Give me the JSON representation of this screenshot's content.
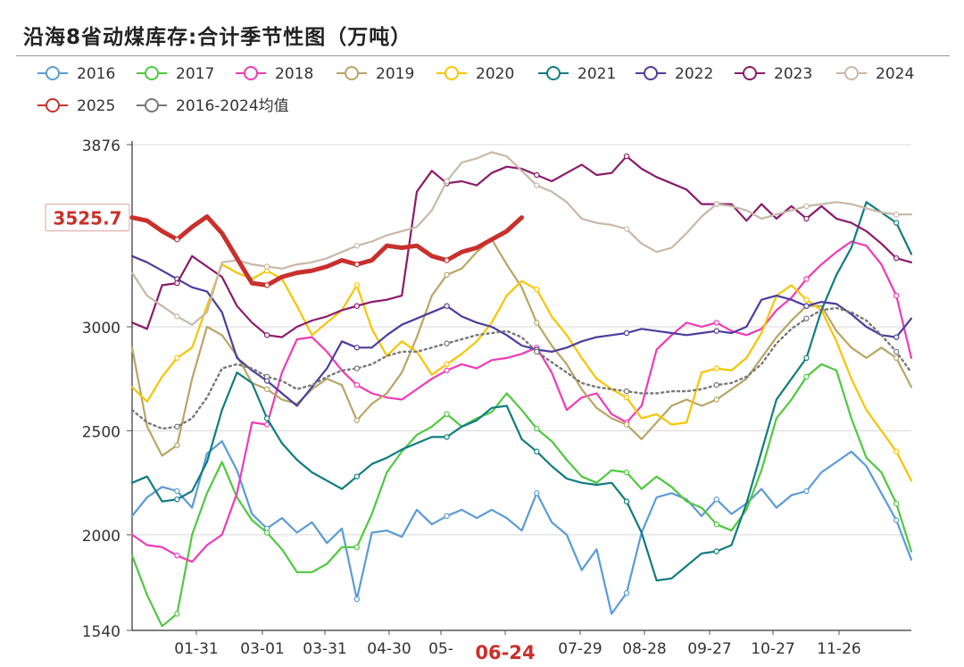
{
  "chart_data": {
    "type": "line",
    "title": "沿海8省动煤库存:合计季节性图（万吨）",
    "xlabel": "",
    "ylabel": "",
    "ylim": [
      1540,
      3876
    ],
    "yticks": [
      "1540",
      "2000",
      "2500",
      "3000",
      "3876"
    ],
    "xticks": [
      "01-31",
      "03-01",
      "03-31",
      "04-30",
      "05-",
      "06-24",
      "07-29",
      "08-28",
      "09-27",
      "10-27",
      "11-26"
    ],
    "highlighted_tick": "06-24",
    "highlight_color": "#c9302c",
    "callout": "3525.7",
    "x_count": 53,
    "series": [
      {
        "name": "2016",
        "color": "#5b9bd5",
        "width": 2.2,
        "dashed": false,
        "values": [
          2090,
          2180,
          2230,
          2210,
          2130,
          2390,
          2450,
          2310,
          2100,
          2030,
          2080,
          2010,
          2060,
          1960,
          2030,
          1690,
          2010,
          2020,
          1990,
          2120,
          2050,
          2090,
          2120,
          2080,
          2120,
          2080,
          2020,
          2200,
          2060,
          2000,
          1830,
          1930,
          1620,
          1720,
          2010,
          2180,
          2200,
          2170,
          2090,
          2170,
          2100,
          2150,
          2220,
          2130,
          2190,
          2210,
          2300,
          2350,
          2400,
          2330,
          2200,
          2070,
          1880
        ]
      },
      {
        "name": "2017",
        "color": "#4fc840",
        "width": 2.2,
        "dashed": false,
        "values": [
          1900,
          1710,
          1560,
          1620,
          2000,
          2200,
          2350,
          2180,
          2070,
          2010,
          1930,
          1820,
          1820,
          1860,
          1940,
          1940,
          2100,
          2300,
          2400,
          2480,
          2520,
          2580,
          2520,
          2560,
          2590,
          2680,
          2600,
          2510,
          2450,
          2360,
          2280,
          2250,
          2310,
          2300,
          2220,
          2280,
          2230,
          2160,
          2130,
          2050,
          2020,
          2120,
          2310,
          2560,
          2650,
          2760,
          2820,
          2790,
          2560,
          2370,
          2300,
          2150,
          1920
        ]
      },
      {
        "name": "2018",
        "color": "#f13ab6",
        "width": 2.2,
        "dashed": false,
        "values": [
          2000,
          1950,
          1940,
          1900,
          1870,
          1950,
          2000,
          2200,
          2540,
          2530,
          2780,
          2940,
          2950,
          2880,
          2790,
          2720,
          2680,
          2660,
          2650,
          2700,
          2750,
          2790,
          2820,
          2800,
          2840,
          2850,
          2870,
          2900,
          2780,
          2600,
          2660,
          2680,
          2580,
          2540,
          2620,
          2890,
          2960,
          3020,
          3000,
          3020,
          2980,
          2960,
          2990,
          3080,
          3140,
          3230,
          3300,
          3360,
          3410,
          3390,
          3300,
          3150,
          2850
        ]
      },
      {
        "name": "2019",
        "color": "#b8a566",
        "width": 2.2,
        "dashed": false,
        "values": [
          2900,
          2520,
          2380,
          2430,
          2750,
          3000,
          2960,
          2860,
          2730,
          2700,
          2650,
          2630,
          2700,
          2750,
          2720,
          2550,
          2630,
          2680,
          2780,
          2950,
          3150,
          3250,
          3280,
          3360,
          3420,
          3300,
          3190,
          3020,
          2910,
          2820,
          2700,
          2610,
          2560,
          2530,
          2460,
          2540,
          2620,
          2650,
          2620,
          2650,
          2700,
          2750,
          2850,
          2950,
          3030,
          3100,
          3100,
          2980,
          2900,
          2850,
          2900,
          2850,
          2710
        ]
      },
      {
        "name": "2020",
        "color": "#f6c500",
        "width": 2.2,
        "dashed": false,
        "values": [
          2710,
          2640,
          2760,
          2850,
          2900,
          3100,
          3300,
          3260,
          3230,
          3270,
          3230,
          3100,
          2960,
          3020,
          3080,
          3200,
          2990,
          2860,
          2930,
          2880,
          2770,
          2820,
          2870,
          2930,
          3020,
          3150,
          3220,
          3180,
          3050,
          2960,
          2850,
          2750,
          2700,
          2660,
          2560,
          2580,
          2530,
          2540,
          2780,
          2800,
          2790,
          2850,
          2970,
          3150,
          3200,
          3130,
          3080,
          2930,
          2750,
          2600,
          2500,
          2400,
          2260
        ]
      },
      {
        "name": "2021",
        "color": "#117c7f",
        "width": 2.2,
        "dashed": false,
        "values": [
          2250,
          2280,
          2160,
          2170,
          2210,
          2350,
          2600,
          2780,
          2730,
          2560,
          2440,
          2360,
          2300,
          2260,
          2220,
          2280,
          2340,
          2370,
          2410,
          2440,
          2470,
          2470,
          2520,
          2550,
          2610,
          2620,
          2460,
          2400,
          2330,
          2270,
          2250,
          2240,
          2250,
          2160,
          2010,
          1780,
          1790,
          1850,
          1910,
          1920,
          1950,
          2150,
          2400,
          2650,
          2750,
          2850,
          3080,
          3250,
          3380,
          3600,
          3550,
          3500,
          3350
        ]
      },
      {
        "name": "2022",
        "color": "#4b3d9d",
        "width": 2.2,
        "dashed": false,
        "values": [
          3340,
          3310,
          3270,
          3230,
          3190,
          3170,
          3070,
          2850,
          2790,
          2740,
          2680,
          2620,
          2710,
          2800,
          2930,
          2900,
          2900,
          2960,
          3010,
          3040,
          3070,
          3100,
          3050,
          3020,
          3000,
          2960,
          2910,
          2890,
          2880,
          2900,
          2930,
          2950,
          2960,
          2970,
          2990,
          2980,
          2970,
          2960,
          2970,
          2980,
          2970,
          3000,
          3130,
          3150,
          3130,
          3100,
          3120,
          3110,
          3060,
          3000,
          2960,
          2950,
          3040
        ]
      },
      {
        "name": "2023",
        "color": "#8b1a6b",
        "width": 2.2,
        "dashed": false,
        "values": [
          3020,
          2990,
          3200,
          3210,
          3340,
          3290,
          3240,
          3100,
          3020,
          2960,
          2950,
          3000,
          3030,
          3050,
          3080,
          3100,
          3120,
          3130,
          3150,
          3650,
          3750,
          3690,
          3700,
          3680,
          3740,
          3770,
          3760,
          3730,
          3700,
          3740,
          3780,
          3730,
          3740,
          3820,
          3760,
          3720,
          3690,
          3660,
          3590,
          3590,
          3590,
          3510,
          3590,
          3520,
          3580,
          3520,
          3580,
          3520,
          3500,
          3460,
          3400,
          3330,
          3310
        ]
      },
      {
        "name": "2024",
        "color": "#c8b8a8",
        "width": 2.2,
        "dashed": false,
        "values": [
          3260,
          3150,
          3100,
          3050,
          3010,
          3070,
          3310,
          3320,
          3300,
          3290,
          3280,
          3300,
          3310,
          3330,
          3360,
          3390,
          3410,
          3440,
          3460,
          3480,
          3560,
          3700,
          3790,
          3810,
          3840,
          3820,
          3750,
          3680,
          3650,
          3600,
          3520,
          3500,
          3490,
          3470,
          3400,
          3360,
          3380,
          3450,
          3530,
          3590,
          3580,
          3560,
          3520,
          3540,
          3560,
          3580,
          3590,
          3600,
          3590,
          3570,
          3550,
          3540,
          3540
        ]
      },
      {
        "name": "2025",
        "color": "#c9302c",
        "width": 5,
        "dashed": false,
        "values": [
          3525.7,
          3510,
          3460,
          3420,
          3480,
          3530,
          3450,
          3330,
          3210,
          3200,
          3240,
          3260,
          3270,
          3290,
          3320,
          3300,
          3320,
          3390,
          3380,
          3390,
          3340,
          3320,
          3360,
          3380,
          3420,
          3460,
          3525.7
        ]
      },
      {
        "name": "2016-2024均值",
        "color": "#777777",
        "width": 2.4,
        "dashed": true,
        "values": [
          2600,
          2540,
          2510,
          2520,
          2560,
          2660,
          2800,
          2820,
          2800,
          2760,
          2740,
          2700,
          2720,
          2760,
          2790,
          2800,
          2820,
          2860,
          2880,
          2880,
          2900,
          2920,
          2940,
          2960,
          2970,
          2980,
          2950,
          2880,
          2830,
          2780,
          2730,
          2710,
          2700,
          2690,
          2680,
          2680,
          2690,
          2690,
          2700,
          2720,
          2730,
          2760,
          2820,
          2920,
          2990,
          3040,
          3080,
          3090,
          3070,
          3030,
          2960,
          2880,
          2780
        ]
      }
    ]
  }
}
